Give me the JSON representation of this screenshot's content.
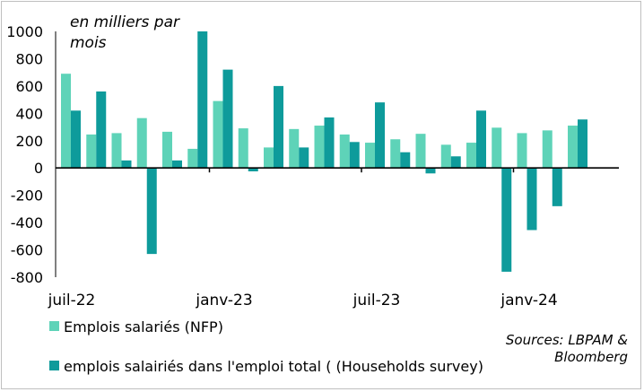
{
  "chart_data": {
    "type": "bar",
    "unit_label": "en milliers par mois",
    "ylim": [
      -800,
      1000
    ],
    "yticks": [
      1000,
      800,
      600,
      400,
      200,
      0,
      -200,
      -400,
      -600,
      -800
    ],
    "x_tick_labels": [
      "juil-22",
      "janv-23",
      "juil-23",
      "janv-24"
    ],
    "categories": [
      "2022-07",
      "2022-08",
      "2022-09",
      "2022-10",
      "2022-11",
      "2022-12",
      "2023-01",
      "2023-02",
      "2023-03",
      "2023-04",
      "2023-05",
      "2023-06",
      "2023-07",
      "2023-08",
      "2023-09",
      "2023-10",
      "2023-11",
      "2023-12",
      "2024-01",
      "2024-02",
      "2024-03"
    ],
    "series": [
      {
        "name": "Emplois salariés (NFP)",
        "color": "#5ED3B8",
        "values": [
          690,
          245,
          255,
          365,
          265,
          140,
          490,
          290,
          150,
          285,
          310,
          245,
          185,
          210,
          250,
          170,
          185,
          295,
          255,
          275,
          310
        ]
      },
      {
        "name": "emplois salairiés dans l'emploi total ( (Households survey)",
        "color": "#0E9B9B",
        "values": [
          420,
          560,
          55,
          -630,
          55,
          1000,
          720,
          -25,
          600,
          150,
          370,
          190,
          480,
          115,
          -40,
          85,
          420,
          -760,
          -455,
          -280,
          355
        ]
      }
    ],
    "grid": false,
    "legend_position": "bottom-left"
  },
  "sources": "Sources: LBPAM & Bloomberg"
}
